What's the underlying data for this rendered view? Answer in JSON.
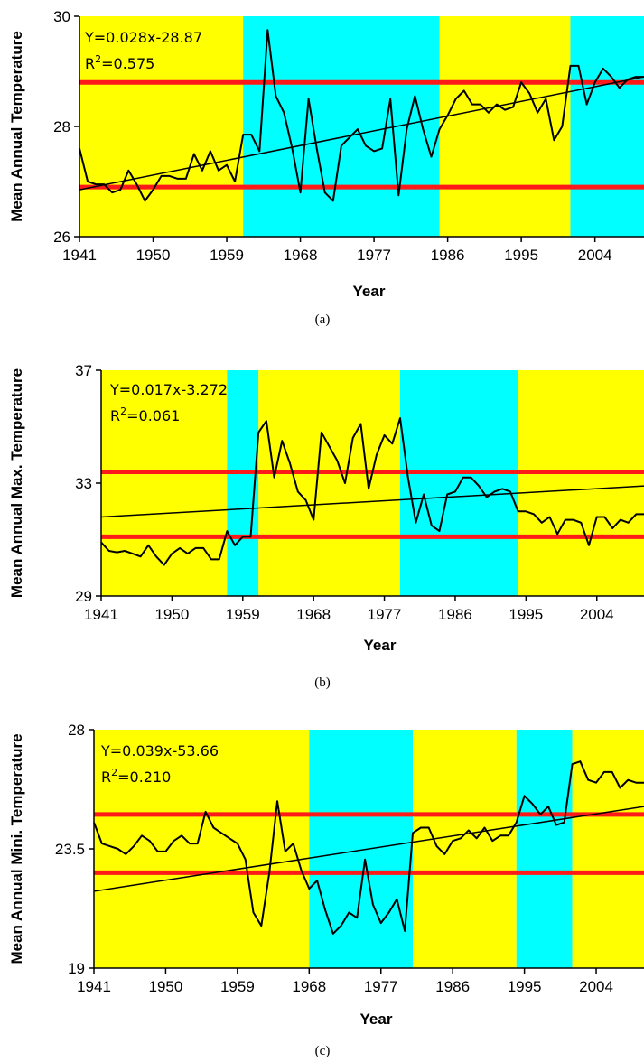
{
  "colors": {
    "yellow": "#ffff00",
    "cyan": "#00ffff",
    "red": "#ff1a1a",
    "line": "#000000"
  },
  "chart_data": [
    {
      "type": "line",
      "caption": "(a)",
      "title": "",
      "xlabel": "Year",
      "ylabel": "Mean Annual Temperature",
      "xlim": [
        1941,
        2010
      ],
      "ylim": [
        26,
        30
      ],
      "xticks": [
        "1941",
        "1950",
        "1959",
        "1968",
        "1977",
        "1986",
        "1995",
        "2004"
      ],
      "yticks": [
        "26",
        "28",
        "30"
      ],
      "annotation": {
        "eq": "Y=0.028x-28.87",
        "r2": "=0.575"
      },
      "bands": [
        {
          "from": 1941,
          "to": 1961,
          "color": "yellow"
        },
        {
          "from": 1961,
          "to": 1985,
          "color": "cyan"
        },
        {
          "from": 1985,
          "to": 2001,
          "color": "yellow"
        },
        {
          "from": 2001,
          "to": 2010,
          "color": "cyan"
        }
      ],
      "hlines": [
        28.8,
        26.9
      ],
      "trend": {
        "x": [
          1941,
          2010
        ],
        "y": [
          26.85,
          28.9
        ]
      },
      "series": [
        {
          "x": [
            1941,
            1942,
            1943,
            1944,
            1945,
            1946,
            1947,
            1948,
            1949,
            1950,
            1951,
            1952,
            1953,
            1954,
            1955,
            1956,
            1957,
            1958,
            1959,
            1960,
            1961,
            1962,
            1963,
            1964,
            1965,
            1966,
            1967,
            1968,
            1969,
            1970,
            1971,
            1972,
            1973,
            1974,
            1975,
            1976,
            1977,
            1978,
            1979,
            1980,
            1981,
            1982,
            1983,
            1984,
            1985,
            1986,
            1987,
            1988,
            1989,
            1990,
            1991,
            1992,
            1993,
            1994,
            1995,
            1996,
            1997,
            1998,
            1999,
            2000,
            2001,
            2002,
            2003,
            2004,
            2005,
            2006,
            2007,
            2008,
            2009,
            2010
          ],
          "y": [
            27.6,
            27.0,
            26.95,
            26.95,
            26.8,
            26.85,
            27.2,
            26.95,
            26.65,
            26.85,
            27.1,
            27.1,
            27.05,
            27.05,
            27.5,
            27.2,
            27.55,
            27.2,
            27.3,
            27.0,
            27.85,
            27.85,
            27.55,
            29.75,
            28.55,
            28.25,
            27.6,
            26.8,
            28.5,
            27.6,
            26.8,
            26.65,
            27.65,
            27.8,
            27.95,
            27.65,
            27.55,
            27.6,
            28.5,
            26.75,
            27.95,
            28.55,
            27.95,
            27.45,
            27.95,
            28.2,
            28.5,
            28.65,
            28.4,
            28.4,
            28.25,
            28.4,
            28.3,
            28.35,
            28.8,
            28.6,
            28.25,
            28.5,
            27.75,
            28.0,
            29.1,
            29.1,
            28.4,
            28.8,
            29.05,
            28.9,
            28.7,
            28.85,
            28.9,
            28.9
          ]
        }
      ]
    },
    {
      "type": "line",
      "caption": "(b)",
      "title": "",
      "xlabel": "Year",
      "ylabel": "Mean Annual  Max. Temperature",
      "xlim": [
        1941,
        2010
      ],
      "ylim": [
        29,
        37
      ],
      "xticks": [
        "1941",
        "1950",
        "1959",
        "1968",
        "1977",
        "1986",
        "1995",
        "2004"
      ],
      "yticks": [
        "29",
        "33",
        "37"
      ],
      "annotation": {
        "eq": "Y=0.017x-3.272",
        "r2": "=0.061"
      },
      "bands": [
        {
          "from": 1941,
          "to": 1957,
          "color": "yellow"
        },
        {
          "from": 1957,
          "to": 1961,
          "color": "cyan"
        },
        {
          "from": 1961,
          "to": 1979,
          "color": "yellow"
        },
        {
          "from": 1979,
          "to": 1994,
          "color": "cyan"
        },
        {
          "from": 1994,
          "to": 2010,
          "color": "yellow"
        }
      ],
      "hlines": [
        33.4,
        31.1
      ],
      "trend": {
        "x": [
          1941,
          2010
        ],
        "y": [
          31.8,
          32.9
        ]
      },
      "series": [
        {
          "x": [
            1941,
            1942,
            1943,
            1944,
            1945,
            1946,
            1947,
            1948,
            1949,
            1950,
            1951,
            1952,
            1953,
            1954,
            1955,
            1956,
            1957,
            1958,
            1959,
            1960,
            1961,
            1962,
            1963,
            1964,
            1965,
            1966,
            1967,
            1968,
            1969,
            1970,
            1971,
            1972,
            1973,
            1974,
            1975,
            1976,
            1977,
            1978,
            1979,
            1980,
            1981,
            1982,
            1983,
            1984,
            1985,
            1986,
            1987,
            1988,
            1989,
            1990,
            1991,
            1992,
            1993,
            1994,
            1995,
            1996,
            1997,
            1998,
            1999,
            2000,
            2001,
            2002,
            2003,
            2004,
            2005,
            2006,
            2007,
            2008,
            2009,
            2010
          ],
          "y": [
            30.9,
            30.6,
            30.55,
            30.6,
            30.5,
            30.4,
            30.8,
            30.4,
            30.1,
            30.5,
            30.7,
            30.5,
            30.7,
            30.7,
            30.3,
            30.3,
            31.3,
            30.8,
            31.1,
            31.1,
            34.8,
            35.2,
            33.2,
            34.5,
            33.7,
            32.7,
            32.4,
            31.7,
            34.8,
            34.3,
            33.8,
            33.0,
            34.6,
            35.1,
            32.8,
            34.0,
            34.7,
            34.4,
            35.3,
            33.2,
            31.6,
            32.6,
            31.5,
            31.3,
            32.6,
            32.7,
            33.2,
            33.2,
            32.9,
            32.5,
            32.7,
            32.8,
            32.7,
            32.0,
            32.0,
            31.9,
            31.6,
            31.8,
            31.2,
            31.7,
            31.7,
            31.6,
            30.8,
            31.8,
            31.8,
            31.4,
            31.7,
            31.6,
            31.9,
            31.9
          ]
        }
      ]
    },
    {
      "type": "line",
      "caption": "(c)",
      "title": "",
      "xlabel": "Year",
      "ylabel": "Mean Annual Mini. Temperature",
      "xlim": [
        1941,
        2010
      ],
      "ylim": [
        19,
        28
      ],
      "xticks": [
        "1941",
        "1950",
        "1959",
        "1968",
        "1977",
        "1986",
        "1995",
        "2004"
      ],
      "yticks": [
        "19",
        "23.5",
        "28"
      ],
      "annotation": {
        "eq": "Y=0.039x-53.66",
        "r2": "=0.210"
      },
      "bands": [
        {
          "from": 1941,
          "to": 1968,
          "color": "yellow"
        },
        {
          "from": 1968,
          "to": 1981,
          "color": "cyan"
        },
        {
          "from": 1981,
          "to": 1994,
          "color": "yellow"
        },
        {
          "from": 1994,
          "to": 2001,
          "color": "cyan"
        },
        {
          "from": 2001,
          "to": 2010,
          "color": "yellow"
        }
      ],
      "hlines": [
        24.8,
        22.6
      ],
      "trend": {
        "x": [
          1941,
          2010
        ],
        "y": [
          21.9,
          25.1
        ]
      },
      "series": [
        {
          "x": [
            1941,
            1942,
            1943,
            1944,
            1945,
            1946,
            1947,
            1948,
            1949,
            1950,
            1951,
            1952,
            1953,
            1954,
            1955,
            1956,
            1957,
            1958,
            1959,
            1960,
            1961,
            1962,
            1963,
            1964,
            1965,
            1966,
            1967,
            1968,
            1969,
            1970,
            1971,
            1972,
            1973,
            1974,
            1975,
            1976,
            1977,
            1978,
            1979,
            1980,
            1981,
            1982,
            1983,
            1984,
            1985,
            1986,
            1987,
            1988,
            1989,
            1990,
            1991,
            1992,
            1993,
            1994,
            1995,
            1996,
            1997,
            1998,
            1999,
            2000,
            2001,
            2002,
            2003,
            2004,
            2005,
            2006,
            2007,
            2008,
            2009,
            2010
          ],
          "y": [
            24.5,
            23.7,
            23.6,
            23.5,
            23.3,
            23.6,
            24.0,
            23.8,
            23.4,
            23.4,
            23.8,
            24.0,
            23.7,
            23.7,
            24.9,
            24.3,
            24.1,
            23.9,
            23.7,
            23.1,
            21.1,
            20.6,
            22.6,
            25.3,
            23.4,
            23.7,
            22.7,
            22.0,
            22.3,
            21.2,
            20.3,
            20.6,
            21.1,
            20.9,
            23.1,
            21.4,
            20.7,
            21.1,
            21.6,
            20.4,
            24.1,
            24.3,
            24.3,
            23.6,
            23.3,
            23.8,
            23.9,
            24.2,
            23.9,
            24.3,
            23.8,
            24.0,
            24.0,
            24.5,
            25.5,
            25.2,
            24.8,
            25.1,
            24.4,
            24.5,
            26.7,
            26.8,
            26.1,
            26.0,
            26.4,
            26.4,
            25.8,
            26.1,
            26.0,
            26.0
          ]
        }
      ]
    }
  ]
}
